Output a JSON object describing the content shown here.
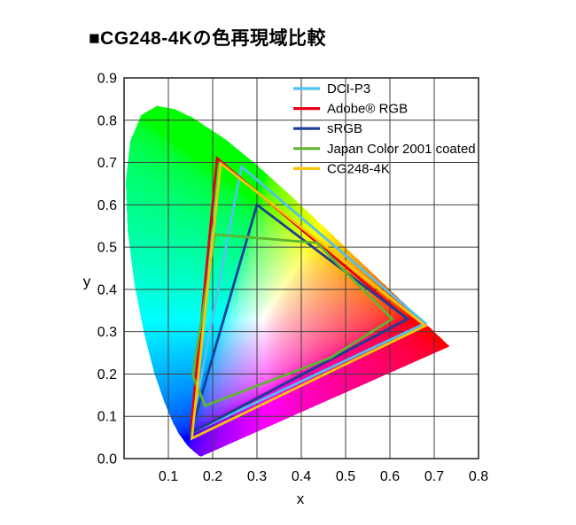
{
  "title": "■CG248-4Kの色再現域比較",
  "chart_data": {
    "type": "line",
    "subtype": "cie-1931-xy-chromaticity-gamut-comparison",
    "title": "■CG248-4Kの色再現域比較",
    "xlabel": "x",
    "ylabel": "y",
    "xlim": [
      0.0,
      0.8
    ],
    "ylim": [
      0.0,
      0.9
    ],
    "x_tick_labels": [
      "0.1",
      "0.2",
      "0.3",
      "0.4",
      "0.5",
      "0.6",
      "0.7",
      "0.8"
    ],
    "y_tick_labels": [
      "0.0",
      "0.1",
      "0.2",
      "0.3",
      "0.4",
      "0.5",
      "0.6",
      "0.7",
      "0.8",
      "0.9"
    ],
    "grid": true,
    "legend_position": "top-right",
    "series": [
      {
        "name": "DCI-P3",
        "color": "#4fc2ee",
        "vertices": [
          [
            0.68,
            0.32
          ],
          [
            0.265,
            0.69
          ],
          [
            0.15,
            0.06
          ]
        ]
      },
      {
        "name": "Adobe® RGB",
        "color": "#e60017",
        "vertices": [
          [
            0.64,
            0.33
          ],
          [
            0.21,
            0.71
          ],
          [
            0.15,
            0.06
          ]
        ]
      },
      {
        "name": "sRGB",
        "color": "#1d3d99",
        "vertices": [
          [
            0.64,
            0.33
          ],
          [
            0.3,
            0.6
          ],
          [
            0.15,
            0.06
          ]
        ]
      },
      {
        "name": "Japan Color 2001 coated",
        "color": "#5eb62f",
        "vertices": [
          [
            0.205,
            0.53
          ],
          [
            0.435,
            0.51
          ],
          [
            0.605,
            0.33
          ],
          [
            0.465,
            0.238
          ],
          [
            0.183,
            0.125
          ],
          [
            0.155,
            0.196
          ]
        ]
      },
      {
        "name": "CG248-4K",
        "color": "#f5c60a",
        "vertices": [
          [
            0.68,
            0.314
          ],
          [
            0.218,
            0.698
          ],
          [
            0.153,
            0.048
          ]
        ]
      }
    ],
    "spectral_locus": [
      [
        0.1741,
        0.005
      ],
      [
        0.1733,
        0.0048
      ],
      [
        0.1714,
        0.0051
      ],
      [
        0.1644,
        0.0109
      ],
      [
        0.1566,
        0.0177
      ],
      [
        0.144,
        0.0297
      ],
      [
        0.1241,
        0.0578
      ],
      [
        0.1096,
        0.0868
      ],
      [
        0.0913,
        0.1327
      ],
      [
        0.0687,
        0.2007
      ],
      [
        0.0454,
        0.295
      ],
      [
        0.0235,
        0.4127
      ],
      [
        0.0082,
        0.5384
      ],
      [
        0.0039,
        0.6548
      ],
      [
        0.0139,
        0.7502
      ],
      [
        0.0389,
        0.812
      ],
      [
        0.0743,
        0.8338
      ],
      [
        0.1142,
        0.8262
      ],
      [
        0.1547,
        0.8059
      ],
      [
        0.2296,
        0.7543
      ],
      [
        0.3016,
        0.6923
      ],
      [
        0.3731,
        0.6245
      ],
      [
        0.4441,
        0.5547
      ],
      [
        0.5125,
        0.4866
      ],
      [
        0.5752,
        0.4242
      ],
      [
        0.627,
        0.3725
      ],
      [
        0.6658,
        0.334
      ],
      [
        0.6915,
        0.3083
      ],
      [
        0.7079,
        0.292
      ],
      [
        0.719,
        0.2809
      ],
      [
        0.726,
        0.274
      ],
      [
        0.7334,
        0.2666
      ],
      [
        0.7347,
        0.2653
      ]
    ]
  }
}
